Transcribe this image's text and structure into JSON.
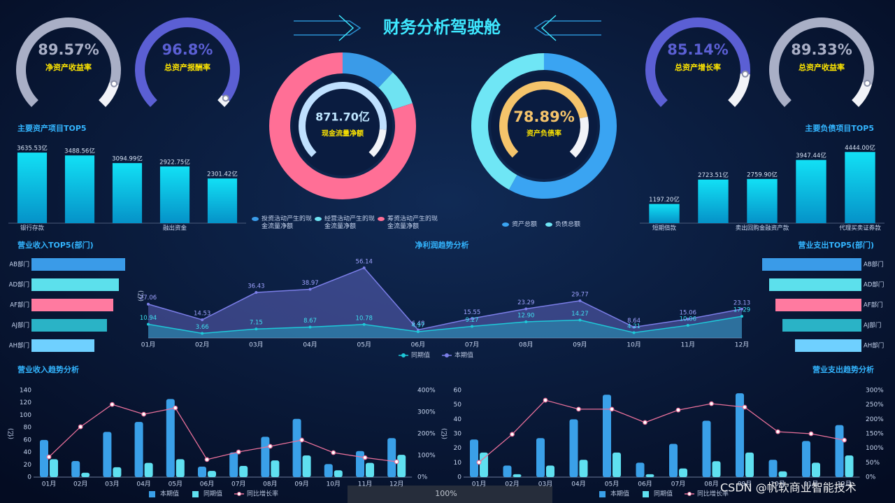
{
  "title": "财务分析驾驶舱",
  "watermark": "CSDN @帆软商业智能技术",
  "toolbar": {
    "zoom": "100%"
  },
  "chart_data": [
    {
      "type": "gauge",
      "title": "净资产收益率",
      "values": [
        89.57
      ],
      "value_labels": [
        "89.57%"
      ],
      "ylim": [
        0,
        100
      ],
      "color": "#a9afc6"
    },
    {
      "type": "gauge",
      "title": "总资产报酬率",
      "values": [
        96.8
      ],
      "value_labels": [
        "96.8%"
      ],
      "ylim": [
        0,
        100
      ],
      "color": "#5b5fd4"
    },
    {
      "type": "gauge",
      "title": "总资产增长率",
      "values": [
        85.14
      ],
      "value_labels": [
        "85.14%"
      ],
      "ylim": [
        0,
        100
      ],
      "color": "#5b5fd4"
    },
    {
      "type": "gauge",
      "title": "总资产收益率",
      "values": [
        89.33
      ],
      "value_labels": [
        "89.33%"
      ],
      "ylim": [
        0,
        100
      ],
      "color": "#a9afc6"
    },
    {
      "type": "donut",
      "categories": [
        "投资活动产生的现金流量净额",
        "经营活动产生的现金流量净额",
        "筹资活动产生的现金流量净额"
      ],
      "values": [
        12,
        8,
        80
      ],
      "colors": [
        "#3a9be8",
        "#6fe3f2",
        "#ff6f96"
      ],
      "center": {
        "value": 871.7,
        "label": "871.70亿",
        "title": "现金流量净额"
      }
    },
    {
      "type": "donut",
      "categories": [
        "资产总额",
        "负债总额"
      ],
      "values": [
        58,
        42
      ],
      "colors": [
        "#3aa4f2",
        "#6fe6f5"
      ],
      "center": {
        "value": 78.89,
        "label": "78.89%",
        "title": "资产负债率",
        "ylim": [
          0,
          100
        ],
        "color": "#f5c46b"
      }
    },
    {
      "type": "bar",
      "title": "主要资产项目TOP5",
      "categories": [
        "银行存款",
        null,
        null,
        "融出资金",
        null
      ],
      "values": [
        3635.53,
        3488.56,
        3094.99,
        2922.75,
        2301.42
      ],
      "value_labels": [
        "3635.53亿",
        "3488.56亿",
        "3094.99亿",
        "2922.75亿",
        "2301.42亿"
      ],
      "ylim": [
        0,
        4000
      ]
    },
    {
      "type": "bar",
      "title": "主要负债项目TOP5",
      "categories": [
        "短期借款",
        null,
        "卖出回购金融资产款",
        null,
        "代理买卖证券款"
      ],
      "values": [
        1197.2,
        2723.51,
        2759.9,
        3947.44,
        4444
      ],
      "value_labels": [
        "1197.20亿",
        "2723.51亿",
        "2759.90亿",
        "3947.44亿",
        "4444.00亿"
      ],
      "ylim": [
        0,
        4500
      ]
    },
    {
      "type": "hbar",
      "title": "营业收入TOP5(部门)",
      "categories": [
        "AB部门",
        "AD部门",
        "AF部门",
        "AJ部门",
        "AH部门"
      ],
      "values": [
        134,
        125,
        117,
        108,
        90
      ],
      "colors": [
        "#3a9be8",
        "#5ce0ec",
        "#ff7aa0",
        "#2ab3c6",
        "#6fd0ff"
      ],
      "xlim": [
        0,
        150
      ]
    },
    {
      "type": "hbar",
      "title": "营业支出TOP5(部门)",
      "categories": [
        "AB部门",
        "AD部门",
        "AF部门",
        "AJ部门",
        "AH部门"
      ],
      "values": [
        142,
        132,
        123,
        113,
        95
      ],
      "colors": [
        "#3a9be8",
        "#5ce0ec",
        "#ff7aa0",
        "#2ab3c6",
        "#6fd0ff"
      ],
      "xlim": [
        0,
        150
      ]
    },
    {
      "type": "line",
      "title": "净利润趋势分析",
      "y_label": "(亿)",
      "categories": [
        "01月",
        "02月",
        "03月",
        "04月",
        "05月",
        "06月",
        "07月",
        "08月",
        "09月",
        "10月",
        "11月",
        "12月"
      ],
      "ylim": [
        0,
        60
      ],
      "series": [
        {
          "name": "同期值",
          "color": "#1ec8d8",
          "values": [
            10.94,
            3.66,
            7.15,
            8.67,
            10.78,
            4.97,
            9.27,
            12.9,
            14.27,
            4.21,
            10.06,
            17.29
          ],
          "value_labels": [
            "10.94",
            "3.66",
            "7.15",
            "8.67",
            "10.78",
            "4.97",
            "9.27",
            "12.90",
            "14.27",
            "4.21",
            "10.06",
            "17.29"
          ]
        },
        {
          "name": "本期值",
          "color": "#7b7ee8",
          "values": [
            27.06,
            14.53,
            36.43,
            38.97,
            56.14,
            6.48,
            15.55,
            23.29,
            29.77,
            8.64,
            15.06,
            23.13
          ],
          "value_labels": [
            "27.06",
            "14.53",
            "36.43",
            "38.97",
            "56.14",
            "6.48",
            "15.55",
            "23.29",
            "29.77",
            "8.64",
            "15.06",
            "23.13"
          ]
        }
      ]
    },
    {
      "type": "combo",
      "title": "营业收入趋势分析",
      "y_label": "(亿)",
      "categories": [
        "01月",
        "02月",
        "03月",
        "04月",
        "05月",
        "06月",
        "07月",
        "08月",
        "09月",
        "10月",
        "11月",
        "12月"
      ],
      "ylim": [
        0,
        140
      ],
      "yticks": [
        0,
        20,
        40,
        60,
        80,
        100,
        120,
        140
      ],
      "y2lim": [
        0,
        400
      ],
      "y2ticks": [
        {
          "value": 0,
          "label": "0%"
        },
        {
          "value": 100,
          "label": "100%"
        },
        {
          "value": 200,
          "label": "200%"
        },
        {
          "value": 300,
          "label": "300%"
        },
        {
          "value": 400,
          "label": "400%"
        }
      ],
      "series": [
        {
          "name": "本期值",
          "type": "bar",
          "color": "#3aa0e8",
          "values": [
            60,
            26,
            73,
            89,
            126,
            17,
            40,
            65,
            94,
            21,
            42,
            63
          ]
        },
        {
          "name": "同期值",
          "type": "bar",
          "color": "#5fe0f0",
          "values": [
            29,
            7,
            16,
            23,
            29,
            10,
            18,
            27,
            35,
            11,
            23,
            36
          ]
        },
        {
          "name": "同比增长率",
          "type": "line",
          "axis": "y2",
          "color": "#e8709a",
          "values": [
            93,
            232,
            335,
            290,
            319,
            81,
            116,
            142,
            171,
            113,
            90,
            71
          ]
        }
      ]
    },
    {
      "type": "combo",
      "title": "营业支出趋势分析",
      "y_label": "(亿)",
      "categories": [
        "01月",
        "02月",
        "03月",
        "04月",
        "05月",
        "06月",
        "07月",
        "08月",
        "09月",
        "10月",
        "11月",
        "12月"
      ],
      "ylim": [
        0,
        60
      ],
      "yticks": [
        0,
        10,
        20,
        30,
        40,
        50,
        60
      ],
      "y2lim": [
        0,
        300
      ],
      "y2ticks": [
        {
          "value": 0,
          "label": "0%"
        },
        {
          "value": 50,
          "label": "50%"
        },
        {
          "value": 100,
          "label": "100%"
        },
        {
          "value": 150,
          "label": "150%"
        },
        {
          "value": 200,
          "label": "200%"
        },
        {
          "value": 250,
          "label": "250%"
        },
        {
          "value": 300,
          "label": "300%"
        }
      ],
      "series": [
        {
          "name": "本期值",
          "type": "bar",
          "color": "#3aa0e8",
          "values": [
            26,
            8,
            27,
            40,
            57,
            10,
            23,
            39,
            58,
            12,
            25,
            36
          ]
        },
        {
          "name": "同期值",
          "type": "bar",
          "color": "#5fe0f0",
          "values": [
            17,
            2,
            8,
            12,
            17,
            2,
            6,
            11,
            17,
            4,
            10,
            15
          ]
        },
        {
          "name": "同比增长率",
          "type": "line",
          "axis": "y2",
          "color": "#e8709a",
          "values": [
            51,
            148,
            266,
            235,
            235,
            189,
            232,
            254,
            242,
            157,
            150,
            128
          ]
        }
      ]
    }
  ]
}
